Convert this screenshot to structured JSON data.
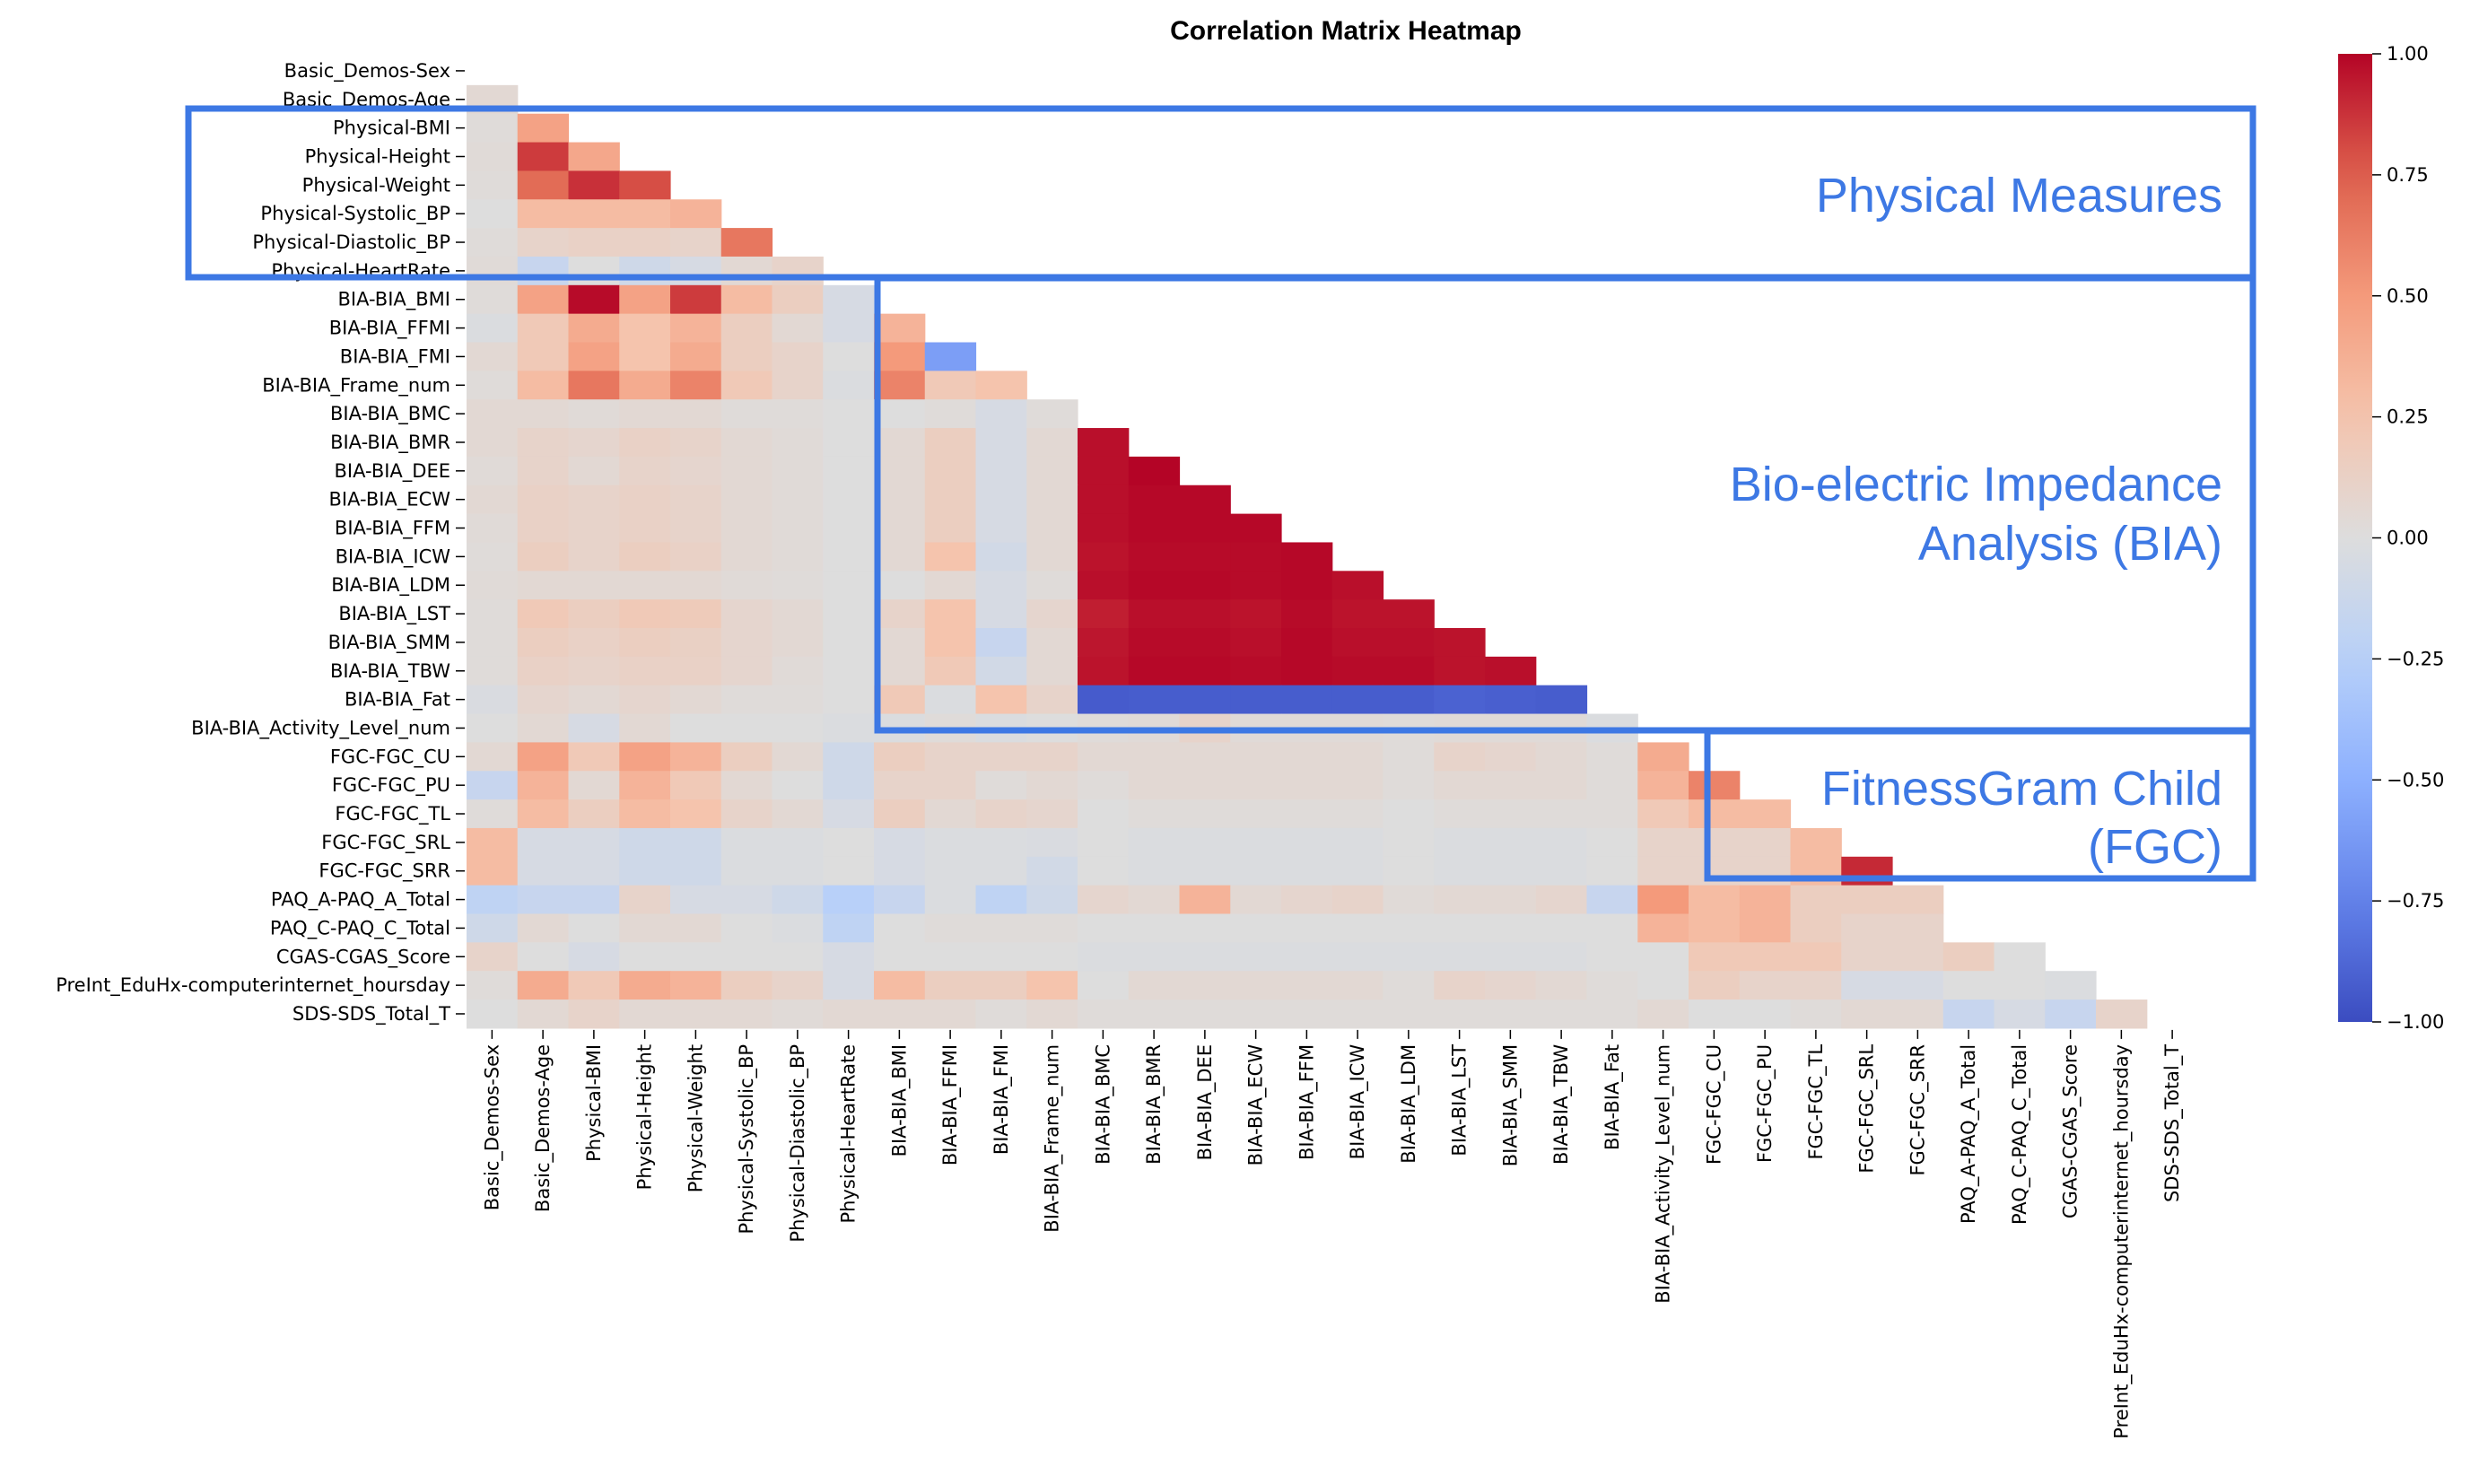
{
  "chart_data": {
    "type": "heatmap",
    "title": "Correlation Matrix Heatmap",
    "variables": [
      "Basic_Demos-Sex",
      "Basic_Demos-Age",
      "Physical-BMI",
      "Physical-Height",
      "Physical-Weight",
      "Physical-Systolic_BP",
      "Physical-Diastolic_BP",
      "Physical-HeartRate",
      "BIA-BIA_BMI",
      "BIA-BIA_FFMI",
      "BIA-BIA_FMI",
      "BIA-BIA_Frame_num",
      "BIA-BIA_BMC",
      "BIA-BIA_BMR",
      "BIA-BIA_DEE",
      "BIA-BIA_ECW",
      "BIA-BIA_FFM",
      "BIA-BIA_ICW",
      "BIA-BIA_LDM",
      "BIA-BIA_LST",
      "BIA-BIA_SMM",
      "BIA-BIA_TBW",
      "BIA-BIA_Fat",
      "BIA-BIA_Activity_Level_num",
      "FGC-FGC_CU",
      "FGC-FGC_PU",
      "FGC-FGC_TL",
      "FGC-FGC_SRL",
      "FGC-FGC_SRR",
      "PAQ_A-PAQ_A_Total",
      "PAQ_C-PAQ_C_Total",
      "CGAS-CGAS_Score",
      "PreInt_EduHx-computerinternet_hoursday",
      "SDS-SDS_Total_T"
    ],
    "matrix_lower": [
      [],
      [
        0.05
      ],
      [
        0.02,
        0.45
      ],
      [
        0.03,
        0.85,
        0.42
      ],
      [
        0.02,
        0.7,
        0.88,
        0.8
      ],
      [
        0.0,
        0.3,
        0.3,
        0.3,
        0.35
      ],
      [
        0.02,
        0.1,
        0.12,
        0.12,
        0.1,
        0.65
      ],
      [
        0.03,
        -0.15,
        0.0,
        -0.1,
        -0.05,
        0.05,
        0.1
      ],
      [
        0.02,
        0.45,
        0.98,
        0.45,
        0.85,
        0.3,
        0.15,
        -0.05
      ],
      [
        -0.02,
        0.2,
        0.4,
        0.25,
        0.35,
        0.15,
        0.05,
        -0.05,
        0.35
      ],
      [
        0.05,
        0.2,
        0.45,
        0.25,
        0.4,
        0.15,
        0.1,
        0.0,
        0.5,
        -0.6
      ],
      [
        0.02,
        0.3,
        0.65,
        0.4,
        0.6,
        0.2,
        0.1,
        -0.02,
        0.6,
        0.2,
        0.25
      ],
      [
        0.05,
        0.05,
        0.03,
        0.05,
        0.05,
        0.02,
        0.02,
        0.0,
        0.0,
        0.02,
        -0.05,
        0.02
      ],
      [
        0.05,
        0.1,
        0.08,
        0.12,
        0.1,
        0.05,
        0.03,
        0.0,
        0.05,
        0.15,
        -0.05,
        0.05,
        0.97
      ],
      [
        0.03,
        0.1,
        0.05,
        0.1,
        0.08,
        0.05,
        0.03,
        0.0,
        0.05,
        0.15,
        -0.05,
        0.05,
        0.97,
        1.0
      ],
      [
        0.05,
        0.12,
        0.1,
        0.12,
        0.1,
        0.05,
        0.03,
        0.0,
        0.05,
        0.15,
        -0.05,
        0.05,
        0.97,
        0.99,
        0.99
      ],
      [
        0.03,
        0.12,
        0.1,
        0.12,
        0.1,
        0.05,
        0.03,
        0.0,
        0.05,
        0.15,
        -0.05,
        0.05,
        0.97,
        0.99,
        0.99,
        0.99
      ],
      [
        0.02,
        0.15,
        0.1,
        0.15,
        0.12,
        0.05,
        0.03,
        0.0,
        0.05,
        0.25,
        -0.08,
        0.05,
        0.96,
        0.98,
        0.98,
        0.98,
        0.99
      ],
      [
        0.03,
        0.05,
        0.05,
        0.05,
        0.05,
        0.03,
        0.02,
        0.0,
        0.0,
        0.05,
        -0.05,
        0.02,
        0.97,
        0.99,
        0.99,
        0.98,
        0.99,
        0.97
      ],
      [
        0.02,
        0.2,
        0.15,
        0.2,
        0.18,
        0.08,
        0.05,
        0.0,
        0.1,
        0.25,
        -0.05,
        0.08,
        0.93,
        0.97,
        0.97,
        0.96,
        0.98,
        0.96,
        0.96
      ],
      [
        0.02,
        0.15,
        0.12,
        0.15,
        0.13,
        0.08,
        0.05,
        0.0,
        0.05,
        0.25,
        -0.15,
        0.05,
        0.95,
        0.98,
        0.98,
        0.97,
        0.99,
        0.97,
        0.97,
        0.96
      ],
      [
        0.02,
        0.12,
        0.1,
        0.12,
        0.12,
        0.08,
        0.03,
        0.0,
        0.05,
        0.2,
        -0.08,
        0.05,
        0.96,
        0.99,
        0.99,
        0.98,
        0.99,
        0.98,
        0.98,
        0.96,
        0.97
      ],
      [
        -0.03,
        0.08,
        0.05,
        0.08,
        0.05,
        0.02,
        0.02,
        0.0,
        0.2,
        -0.02,
        0.25,
        0.1,
        -0.93,
        -0.92,
        -0.92,
        -0.92,
        -0.92,
        -0.92,
        -0.92,
        -0.9,
        -0.91,
        -0.92
      ],
      [
        0.0,
        0.05,
        -0.05,
        0.05,
        0.0,
        0.0,
        0.0,
        -0.02,
        -0.02,
        0.02,
        -0.02,
        0.0,
        0.02,
        0.03,
        0.1,
        0.03,
        0.03,
        0.03,
        0.02,
        0.03,
        0.03,
        0.03,
        -0.02
      ],
      [
        0.05,
        0.45,
        0.2,
        0.45,
        0.35,
        0.15,
        0.05,
        -0.1,
        0.15,
        0.1,
        0.1,
        0.1,
        0.05,
        0.05,
        0.05,
        0.05,
        0.05,
        0.05,
        0.02,
        0.1,
        0.08,
        0.05,
        0.02,
        0.4
      ],
      [
        -0.15,
        0.35,
        0.05,
        0.35,
        0.2,
        0.05,
        0.0,
        -0.1,
        0.1,
        0.1,
        0.02,
        0.05,
        0.02,
        0.05,
        0.05,
        0.05,
        0.05,
        0.05,
        0.02,
        0.05,
        0.05,
        0.05,
        0.02,
        0.35,
        0.6
      ],
      [
        0.02,
        0.3,
        0.15,
        0.3,
        0.25,
        0.1,
        0.05,
        -0.05,
        0.15,
        0.05,
        0.1,
        0.08,
        0.0,
        0.02,
        0.02,
        0.02,
        0.02,
        0.02,
        0.0,
        0.02,
        0.02,
        0.02,
        0.02,
        0.2,
        0.3,
        0.3
      ],
      [
        0.3,
        -0.05,
        -0.05,
        -0.1,
        -0.1,
        -0.02,
        -0.02,
        0.0,
        -0.05,
        -0.02,
        -0.02,
        -0.03,
        0.0,
        -0.02,
        -0.02,
        -0.02,
        -0.02,
        -0.02,
        0.0,
        -0.02,
        -0.02,
        -0.02,
        0.0,
        0.1,
        0.1,
        0.1,
        0.3
      ],
      [
        0.3,
        -0.05,
        -0.05,
        -0.1,
        -0.1,
        -0.02,
        -0.02,
        0.0,
        -0.05,
        -0.02,
        -0.02,
        -0.08,
        0.0,
        -0.02,
        -0.02,
        -0.02,
        -0.02,
        -0.02,
        0.0,
        -0.02,
        -0.02,
        -0.02,
        0.0,
        0.1,
        0.1,
        0.1,
        0.3,
        0.9
      ],
      [
        -0.2,
        -0.15,
        -0.15,
        0.1,
        -0.05,
        -0.05,
        -0.1,
        -0.25,
        -0.15,
        -0.02,
        -0.2,
        -0.1,
        0.08,
        0.05,
        0.35,
        0.05,
        0.08,
        0.1,
        0.03,
        0.05,
        0.05,
        0.08,
        -0.15,
        0.5,
        0.3,
        0.35,
        0.15,
        0.15,
        0.15
      ],
      [
        -0.1,
        0.05,
        0.0,
        0.05,
        0.05,
        0.0,
        -0.02,
        -0.2,
        0.0,
        0.02,
        0.02,
        0.02,
        0.0,
        0.0,
        0.0,
        0.0,
        0.0,
        0.0,
        0.0,
        0.0,
        0.0,
        0.0,
        0.0,
        0.35,
        0.3,
        0.35,
        0.15,
        0.1,
        0.1
      ],
      [
        0.1,
        0.0,
        -0.05,
        0.0,
        0.0,
        0.0,
        0.0,
        -0.05,
        0.0,
        0.0,
        0.0,
        0.0,
        -0.02,
        -0.02,
        -0.02,
        -0.02,
        -0.02,
        -0.02,
        -0.02,
        -0.02,
        -0.02,
        -0.02,
        0.0,
        0.0,
        0.2,
        0.2,
        0.2,
        0.1,
        0.1,
        0.15,
        0.0
      ],
      [
        0.02,
        0.4,
        0.2,
        0.4,
        0.35,
        0.15,
        0.1,
        -0.05,
        0.3,
        0.15,
        0.15,
        0.25,
        0.0,
        0.05,
        0.05,
        0.05,
        0.05,
        0.05,
        0.02,
        0.1,
        0.08,
        0.05,
        0.02,
        0.0,
        0.15,
        0.1,
        0.1,
        -0.05,
        -0.05,
        0.0,
        0.0,
        -0.02
      ],
      [
        0.0,
        0.05,
        0.1,
        0.05,
        0.05,
        0.05,
        0.03,
        0.05,
        0.05,
        0.05,
        0.02,
        0.05,
        0.02,
        0.02,
        0.02,
        0.02,
        0.02,
        0.02,
        0.02,
        0.02,
        0.02,
        0.02,
        0.02,
        0.05,
        0.0,
        0.0,
        0.02,
        0.05,
        0.05,
        -0.15,
        -0.05,
        -0.15,
        0.1
      ]
    ],
    "vmin": -1,
    "vmax": 1,
    "colormap": "coolwarm",
    "colorbar_ticks": [
      "1.00",
      "0.75",
      "0.50",
      "0.25",
      "0.00",
      "−0.25",
      "−0.50",
      "−0.75",
      "−1.00"
    ],
    "colorbar_values": [
      1.0,
      0.75,
      0.5,
      0.25,
      0.0,
      -0.25,
      -0.5,
      -0.75,
      -1.0
    ],
    "annotations": [
      {
        "lines": [
          "Physical Measures"
        ],
        "box_color": "#3d78e4"
      },
      {
        "lines": [
          "Bio-electric Impedance",
          "Analysis (BIA)"
        ],
        "box_color": "#3d78e4"
      },
      {
        "lines": [
          "FitnessGram Child",
          "(FGC)"
        ],
        "box_color": "#3d78e4"
      }
    ]
  }
}
